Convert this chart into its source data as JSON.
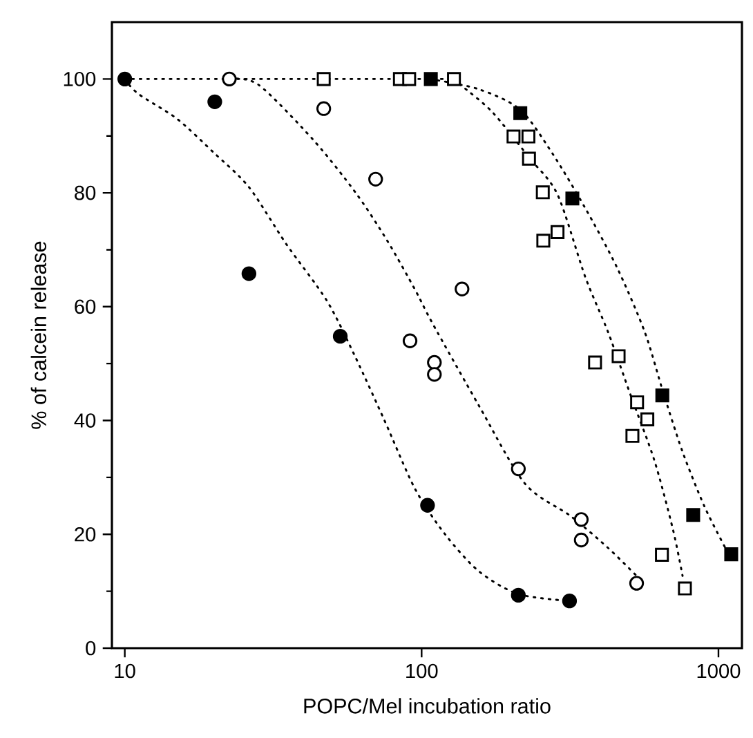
{
  "chart_data": {
    "type": "scatter",
    "xlabel": "POPC/Mel incubation ratio",
    "ylabel": "% of calcein release",
    "log": "x",
    "xlim": [
      9.05,
      1200
    ],
    "xticks": [
      10,
      100,
      1000
    ],
    "ylim": [
      0,
      110
    ],
    "yticks": [
      0,
      20,
      40,
      60,
      80,
      100
    ],
    "grid": false,
    "series": [
      {
        "type": "line",
        "marker": "none",
        "line_style": "dotted",
        "color": "#000000",
        "x": [
          10,
          128.5
        ],
        "values": [
          100,
          100
        ]
      },
      {
        "type": "line",
        "marker": "none",
        "line_style": "dotted",
        "color": "#000000",
        "x": [
          10,
          11.1,
          15,
          20,
          26.2,
          35,
          48,
          60,
          75,
          95,
          120,
          156,
          212,
          315
        ],
        "values": [
          100,
          97.4,
          93,
          87,
          81,
          71,
          61,
          51,
          40,
          28,
          20,
          13.5,
          9.5,
          8.3
        ]
      },
      {
        "type": "line",
        "marker": "none",
        "line_style": "dotted",
        "color": "#000000",
        "x": [
          22.5,
          28.2,
          43,
          60,
          76.6,
          95,
          109,
          156,
          223,
          318,
          425,
          530
        ],
        "values": [
          100,
          99,
          89.4,
          80,
          71.6,
          63,
          57,
          42.6,
          28.9,
          23.2,
          17.6,
          12.7
        ]
      },
      {
        "type": "line",
        "marker": "none",
        "line_style": "dotted",
        "color": "#000000",
        "x": [
          128.5,
          135,
          173,
          231,
          287,
          356,
          425,
          508,
          609,
          703,
          757
        ],
        "values": [
          100,
          99,
          94.2,
          86.1,
          79.7,
          65.2,
          55.5,
          44.2,
          32.9,
          20.8,
          12.7
        ]
      },
      {
        "type": "line",
        "marker": "none",
        "line_style": "dotted",
        "color": "#000000",
        "x": [
          107,
          156,
          215,
          276,
          356,
          456,
          565,
          651,
          757,
          899,
          1075
        ],
        "values": [
          100,
          98.2,
          94.6,
          86.9,
          77.3,
          66.8,
          55.5,
          45,
          34.5,
          24.8,
          16.8
        ]
      },
      {
        "marker": "circle",
        "color": "#000000",
        "x": [
          10,
          20.1,
          26.2,
          53.2,
          104.7,
          211.8,
          315
        ],
        "values": [
          100,
          96,
          65.8,
          54.8,
          25.1,
          9.3,
          8.3
        ]
      },
      {
        "marker": "circle",
        "color": "#ffffff",
        "x": [
          22.5,
          46.8,
          70,
          91.4,
          136.8,
          110.4,
          110.4,
          211.8,
          345,
          345,
          530
        ],
        "values": [
          100,
          94.8,
          82.4,
          54,
          63.1,
          50.2,
          48.1,
          31.5,
          22.6,
          19,
          11.4
        ]
      },
      {
        "marker": "square",
        "color": "#ffffff",
        "x": [
          46.8,
          84.5,
          90.8,
          128.5,
          204,
          229,
          230,
          256,
          257,
          287,
          384,
          461,
          532,
          576,
          513,
          645,
          771
        ],
        "values": [
          100,
          100,
          100,
          100,
          89.9,
          89.9,
          86,
          80.1,
          71.6,
          73.1,
          50.2,
          51.3,
          43.2,
          40.2,
          37.3,
          16.4,
          10.5
        ]
      },
      {
        "marker": "square",
        "color": "#000000",
        "x": [
          107.4,
          215,
          322,
          647,
          822,
          1104
        ],
        "values": [
          100,
          94,
          79,
          44.4,
          23.4,
          16.5
        ]
      }
    ]
  }
}
